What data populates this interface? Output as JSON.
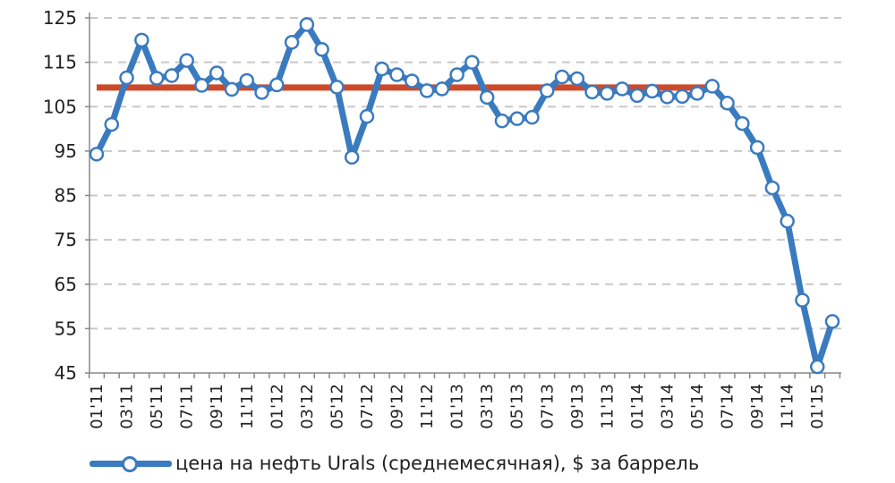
{
  "chart_data": {
    "type": "line",
    "title": "",
    "xlabel": "",
    "ylabel": "",
    "ylim": [
      45,
      125
    ],
    "yticks": [
      "45",
      "55",
      "65",
      "75",
      "85",
      "95",
      "105",
      "115",
      "125"
    ],
    "x": [
      "01'11",
      "02'11",
      "03'11",
      "04'11",
      "05'11",
      "06'11",
      "07'11",
      "08'11",
      "09'11",
      "10'11",
      "11'11",
      "12'11",
      "01'12",
      "02'12",
      "03'12",
      "04'12",
      "05'12",
      "06'12",
      "07'12",
      "08'12",
      "09'12",
      "10'12",
      "11'12",
      "12'12",
      "01'13",
      "02'13",
      "03'13",
      "04'13",
      "05'13",
      "06'13",
      "07'13",
      "08'13",
      "09'13",
      "10'13",
      "11'13",
      "12'13",
      "01'14",
      "02'14",
      "03'14",
      "04'14",
      "05'14",
      "06'14",
      "07'14",
      "08'14",
      "09'14",
      "10'14",
      "11'14",
      "12'14",
      "01'15",
      "02'15"
    ],
    "x_tick_labels": [
      "01'11",
      "03'11",
      "05'11",
      "07'11",
      "09'11",
      "11'11",
      "01'12",
      "03'12",
      "05'12",
      "07'12",
      "09'12",
      "11'12",
      "01'13",
      "03'13",
      "05'13",
      "07'13",
      "09'13",
      "11'13",
      "01'14",
      "03'14",
      "05'14",
      "07'14",
      "09'14",
      "11'14",
      "01'15"
    ],
    "grid": true,
    "legend_position": "bottom",
    "series": [
      {
        "name": "цена на нефть Urals (среднемесячная), $ за баррель",
        "color": "#3a7bbf",
        "marker": "circle",
        "values": [
          94.3,
          101.0,
          111.5,
          120.0,
          111.4,
          112.0,
          115.4,
          109.8,
          112.6,
          108.9,
          110.9,
          108.2,
          109.9,
          119.5,
          123.5,
          117.9,
          109.4,
          93.6,
          102.8,
          113.5,
          112.2,
          110.8,
          108.6,
          109.0,
          112.2,
          115.0,
          107.1,
          101.8,
          102.3,
          102.6,
          108.6,
          111.7,
          111.3,
          108.3,
          108.0,
          109.0,
          107.5,
          108.5,
          107.2,
          107.3,
          108.0,
          109.6,
          105.8,
          101.2,
          95.8,
          86.7,
          79.2,
          61.4,
          46.4,
          56.6
        ]
      }
    ],
    "reference_line": {
      "color": "#cc4a2a",
      "value": 109.3,
      "x_start": "01'11",
      "x_end": "06'14"
    }
  }
}
